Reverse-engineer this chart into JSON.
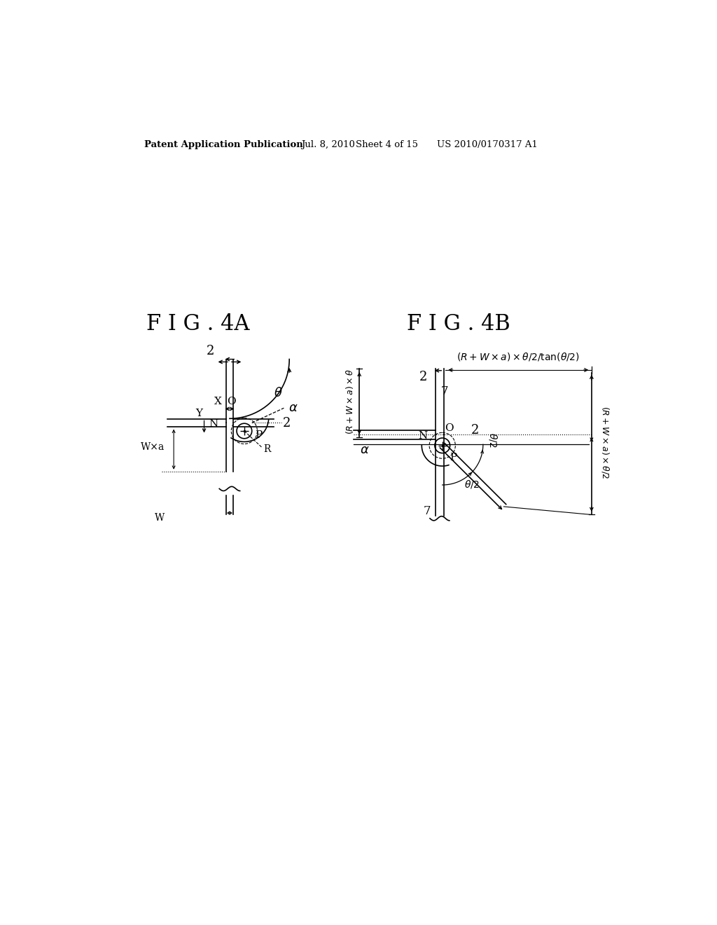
{
  "background_color": "#ffffff",
  "header_text": "Patent Application Publication    Jul. 8, 2010   Sheet 4 of 15    US 2010/0170317 A1",
  "fig4a_title": "F I G . 4A",
  "fig4b_title": "F I G . 4B"
}
